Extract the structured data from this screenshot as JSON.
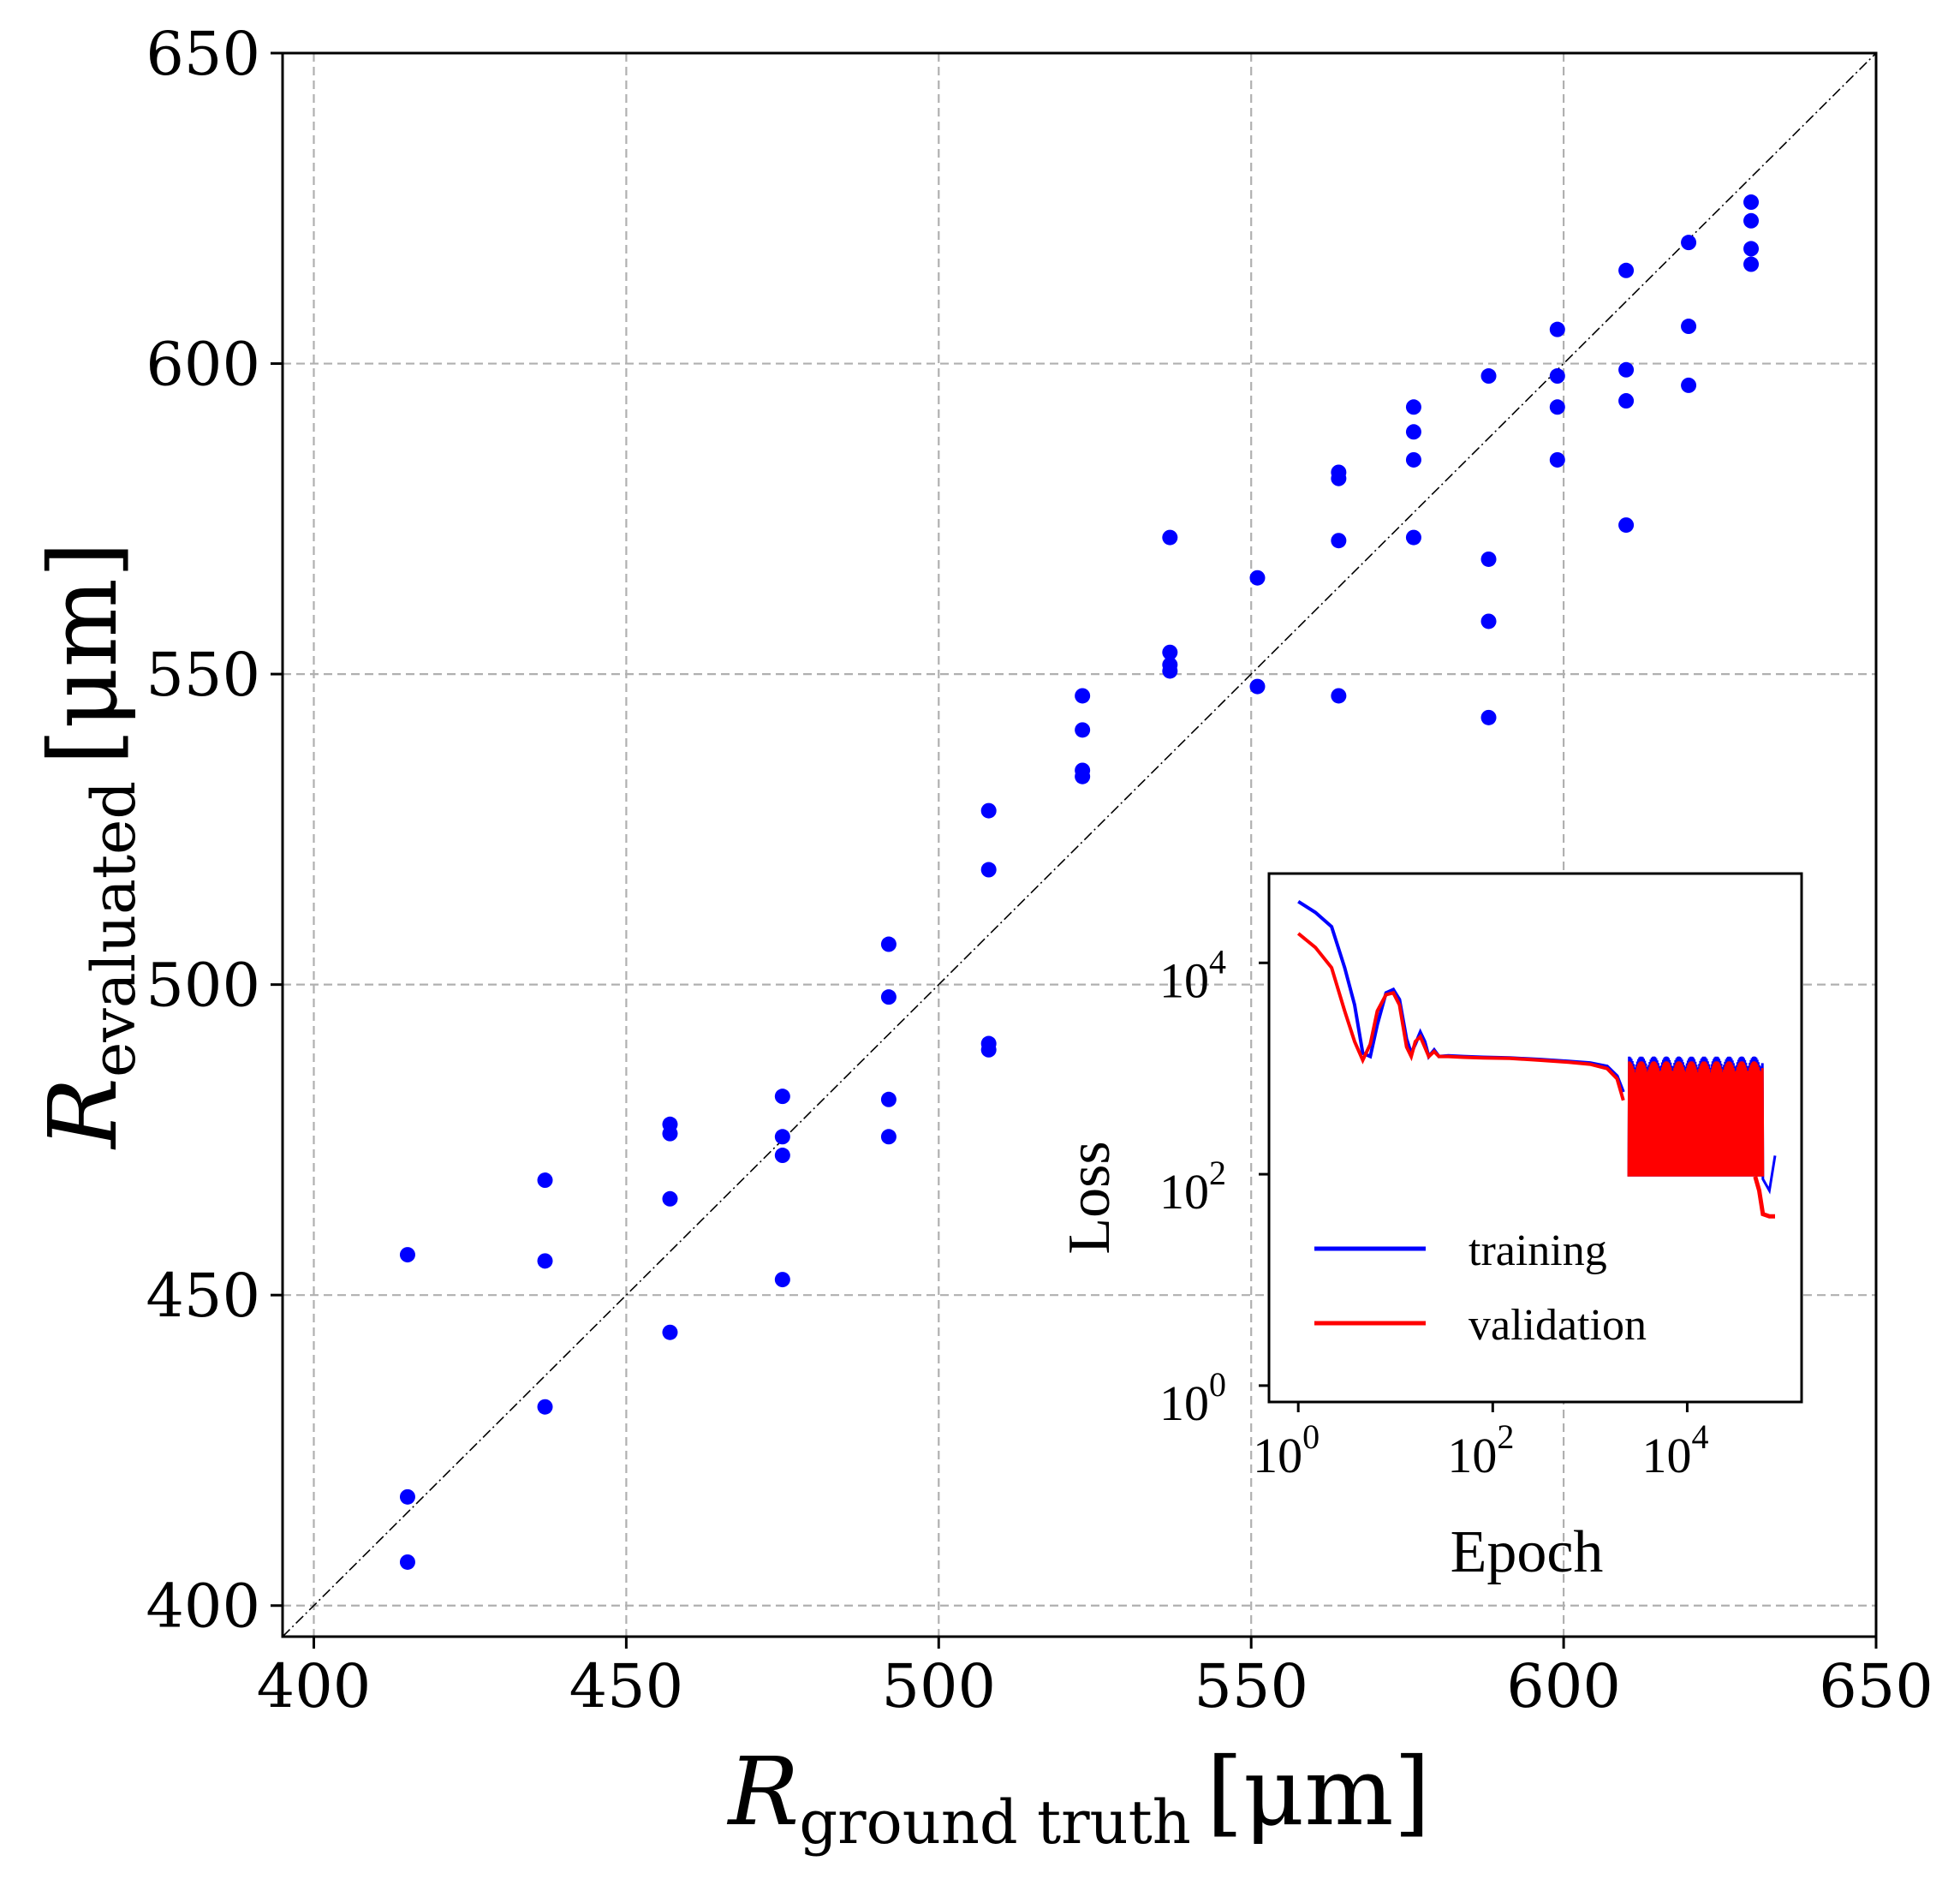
{
  "chart_data": [
    {
      "type": "scatter",
      "xlabel": {
        "symbol": "R",
        "subscript": "ground truth",
        "unit": "[μm]"
      },
      "ylabel": {
        "symbol": "R",
        "subscript": "evaluated",
        "unit": "[μm]"
      },
      "xlim": [
        395,
        650
      ],
      "ylim": [
        395,
        650
      ],
      "xticks": [
        400,
        450,
        500,
        550,
        600,
        650
      ],
      "yticks": [
        400,
        450,
        500,
        550,
        600,
        650
      ],
      "grid": true,
      "marker_color": "#0000ff",
      "reference_line": {
        "from": [
          395,
          395
        ],
        "to": [
          650,
          650
        ],
        "color": "#000000",
        "style": "dash-dot"
      },
      "points": [
        [
          415,
          456.5
        ],
        [
          415,
          417.5
        ],
        [
          415,
          407
        ],
        [
          437,
          468.5
        ],
        [
          437,
          455.5
        ],
        [
          437,
          432
        ],
        [
          457,
          477.5
        ],
        [
          457,
          476
        ],
        [
          457,
          465.5
        ],
        [
          457,
          444
        ],
        [
          475,
          482
        ],
        [
          475,
          475.5
        ],
        [
          475,
          472.5
        ],
        [
          475,
          452.5
        ],
        [
          492,
          506.5
        ],
        [
          492,
          498
        ],
        [
          492,
          481.5
        ],
        [
          492,
          475.5
        ],
        [
          508,
          528
        ],
        [
          508,
          518.5
        ],
        [
          508,
          490.5
        ],
        [
          508,
          489.5
        ],
        [
          523,
          546.5
        ],
        [
          523,
          541
        ],
        [
          523,
          534.5
        ],
        [
          523,
          533.5
        ],
        [
          537,
          572
        ],
        [
          537,
          553.5
        ],
        [
          537,
          551.5
        ],
        [
          537,
          550.5
        ],
        [
          551,
          565.5
        ],
        [
          551,
          548
        ],
        [
          564,
          582.5
        ],
        [
          564,
          581.5
        ],
        [
          564,
          571.5
        ],
        [
          564,
          546.5
        ],
        [
          576,
          593
        ],
        [
          576,
          589
        ],
        [
          576,
          584.5
        ],
        [
          576,
          572
        ],
        [
          588,
          598
        ],
        [
          588,
          568.5
        ],
        [
          588,
          558.5
        ],
        [
          588,
          543
        ],
        [
          599,
          605.5
        ],
        [
          599,
          598
        ],
        [
          599,
          593
        ],
        [
          599,
          584.5
        ],
        [
          610,
          615
        ],
        [
          610,
          599
        ],
        [
          610,
          594
        ],
        [
          610,
          574
        ],
        [
          620,
          619.5
        ],
        [
          620,
          606
        ],
        [
          620,
          596.5
        ],
        [
          630,
          626
        ],
        [
          630,
          623
        ],
        [
          630,
          618.5
        ],
        [
          630,
          616
        ]
      ]
    },
    {
      "type": "line",
      "xscale": "log",
      "yscale": "log",
      "xlabel": "Epoch",
      "ylabel": "Loss",
      "xlim": [
        0.5,
        150000
      ],
      "ylim": [
        0.7,
        70000
      ],
      "xticks": [
        {
          "base": "10",
          "exp": "0",
          "value": 1
        },
        {
          "base": "10",
          "exp": "2",
          "value": 100
        },
        {
          "base": "10",
          "exp": "4",
          "value": 10000
        }
      ],
      "yticks": [
        {
          "base": "10",
          "exp": "0",
          "value": 1
        },
        {
          "base": "10",
          "exp": "2",
          "value": 100
        },
        {
          "base": "10",
          "exp": "4",
          "value": 10000
        }
      ],
      "legend_position": "lower-left",
      "series": [
        {
          "name": "training",
          "color": "#0000ff",
          "points": [
            [
              1,
              38000
            ],
            [
              1.5,
              30000
            ],
            [
              2.2,
              22000
            ],
            [
              3,
              9000
            ],
            [
              3.8,
              4000
            ],
            [
              4.6,
              1400
            ],
            [
              5.5,
              1300
            ],
            [
              6.5,
              2600
            ],
            [
              8,
              5200
            ],
            [
              9.5,
              5600
            ],
            [
              11,
              4500
            ],
            [
              13,
              1900
            ],
            [
              14.5,
              1400
            ],
            [
              16,
              1700
            ],
            [
              18,
              2200
            ],
            [
              20,
              1800
            ],
            [
              22,
              1300
            ],
            [
              25,
              1500
            ],
            [
              28,
              1300
            ],
            [
              35,
              1320
            ],
            [
              50,
              1300
            ],
            [
              80,
              1280
            ],
            [
              150,
              1260
            ],
            [
              300,
              1220
            ],
            [
              600,
              1170
            ],
            [
              1000,
              1130
            ],
            [
              1500,
              1050
            ],
            [
              1900,
              850
            ],
            [
              2200,
              600
            ]
          ]
        },
        {
          "name": "validation",
          "color": "#ff0000",
          "points": [
            [
              1,
              19000
            ],
            [
              1.5,
              14000
            ],
            [
              2.2,
              9000
            ],
            [
              3,
              3500
            ],
            [
              3.8,
              1800
            ],
            [
              4.6,
              1200
            ],
            [
              5.5,
              1700
            ],
            [
              6.5,
              3500
            ],
            [
              8,
              5000
            ],
            [
              9.5,
              5200
            ],
            [
              11,
              4000
            ],
            [
              13,
              1600
            ],
            [
              14.5,
              1300
            ],
            [
              16,
              1800
            ],
            [
              18,
              2000
            ],
            [
              20,
              1600
            ],
            [
              22,
              1300
            ],
            [
              25,
              1450
            ],
            [
              28,
              1300
            ],
            [
              35,
              1300
            ],
            [
              50,
              1280
            ],
            [
              80,
              1260
            ],
            [
              150,
              1250
            ],
            [
              300,
              1200
            ],
            [
              600,
              1150
            ],
            [
              1000,
              1100
            ],
            [
              1500,
              1000
            ],
            [
              1900,
              800
            ],
            [
              2200,
              500
            ],
            [
              2600,
              150
            ],
            [
              3000,
              95
            ],
            [
              50000,
              95
            ],
            [
              55000,
              70
            ],
            [
              60000,
              42
            ],
            [
              70000,
              40
            ],
            [
              80000,
              40
            ]
          ]
        }
      ],
      "oscillation": {
        "epoch_range": [
          2500,
          60000
        ],
        "train_high": 1300,
        "low": 95
      }
    }
  ]
}
